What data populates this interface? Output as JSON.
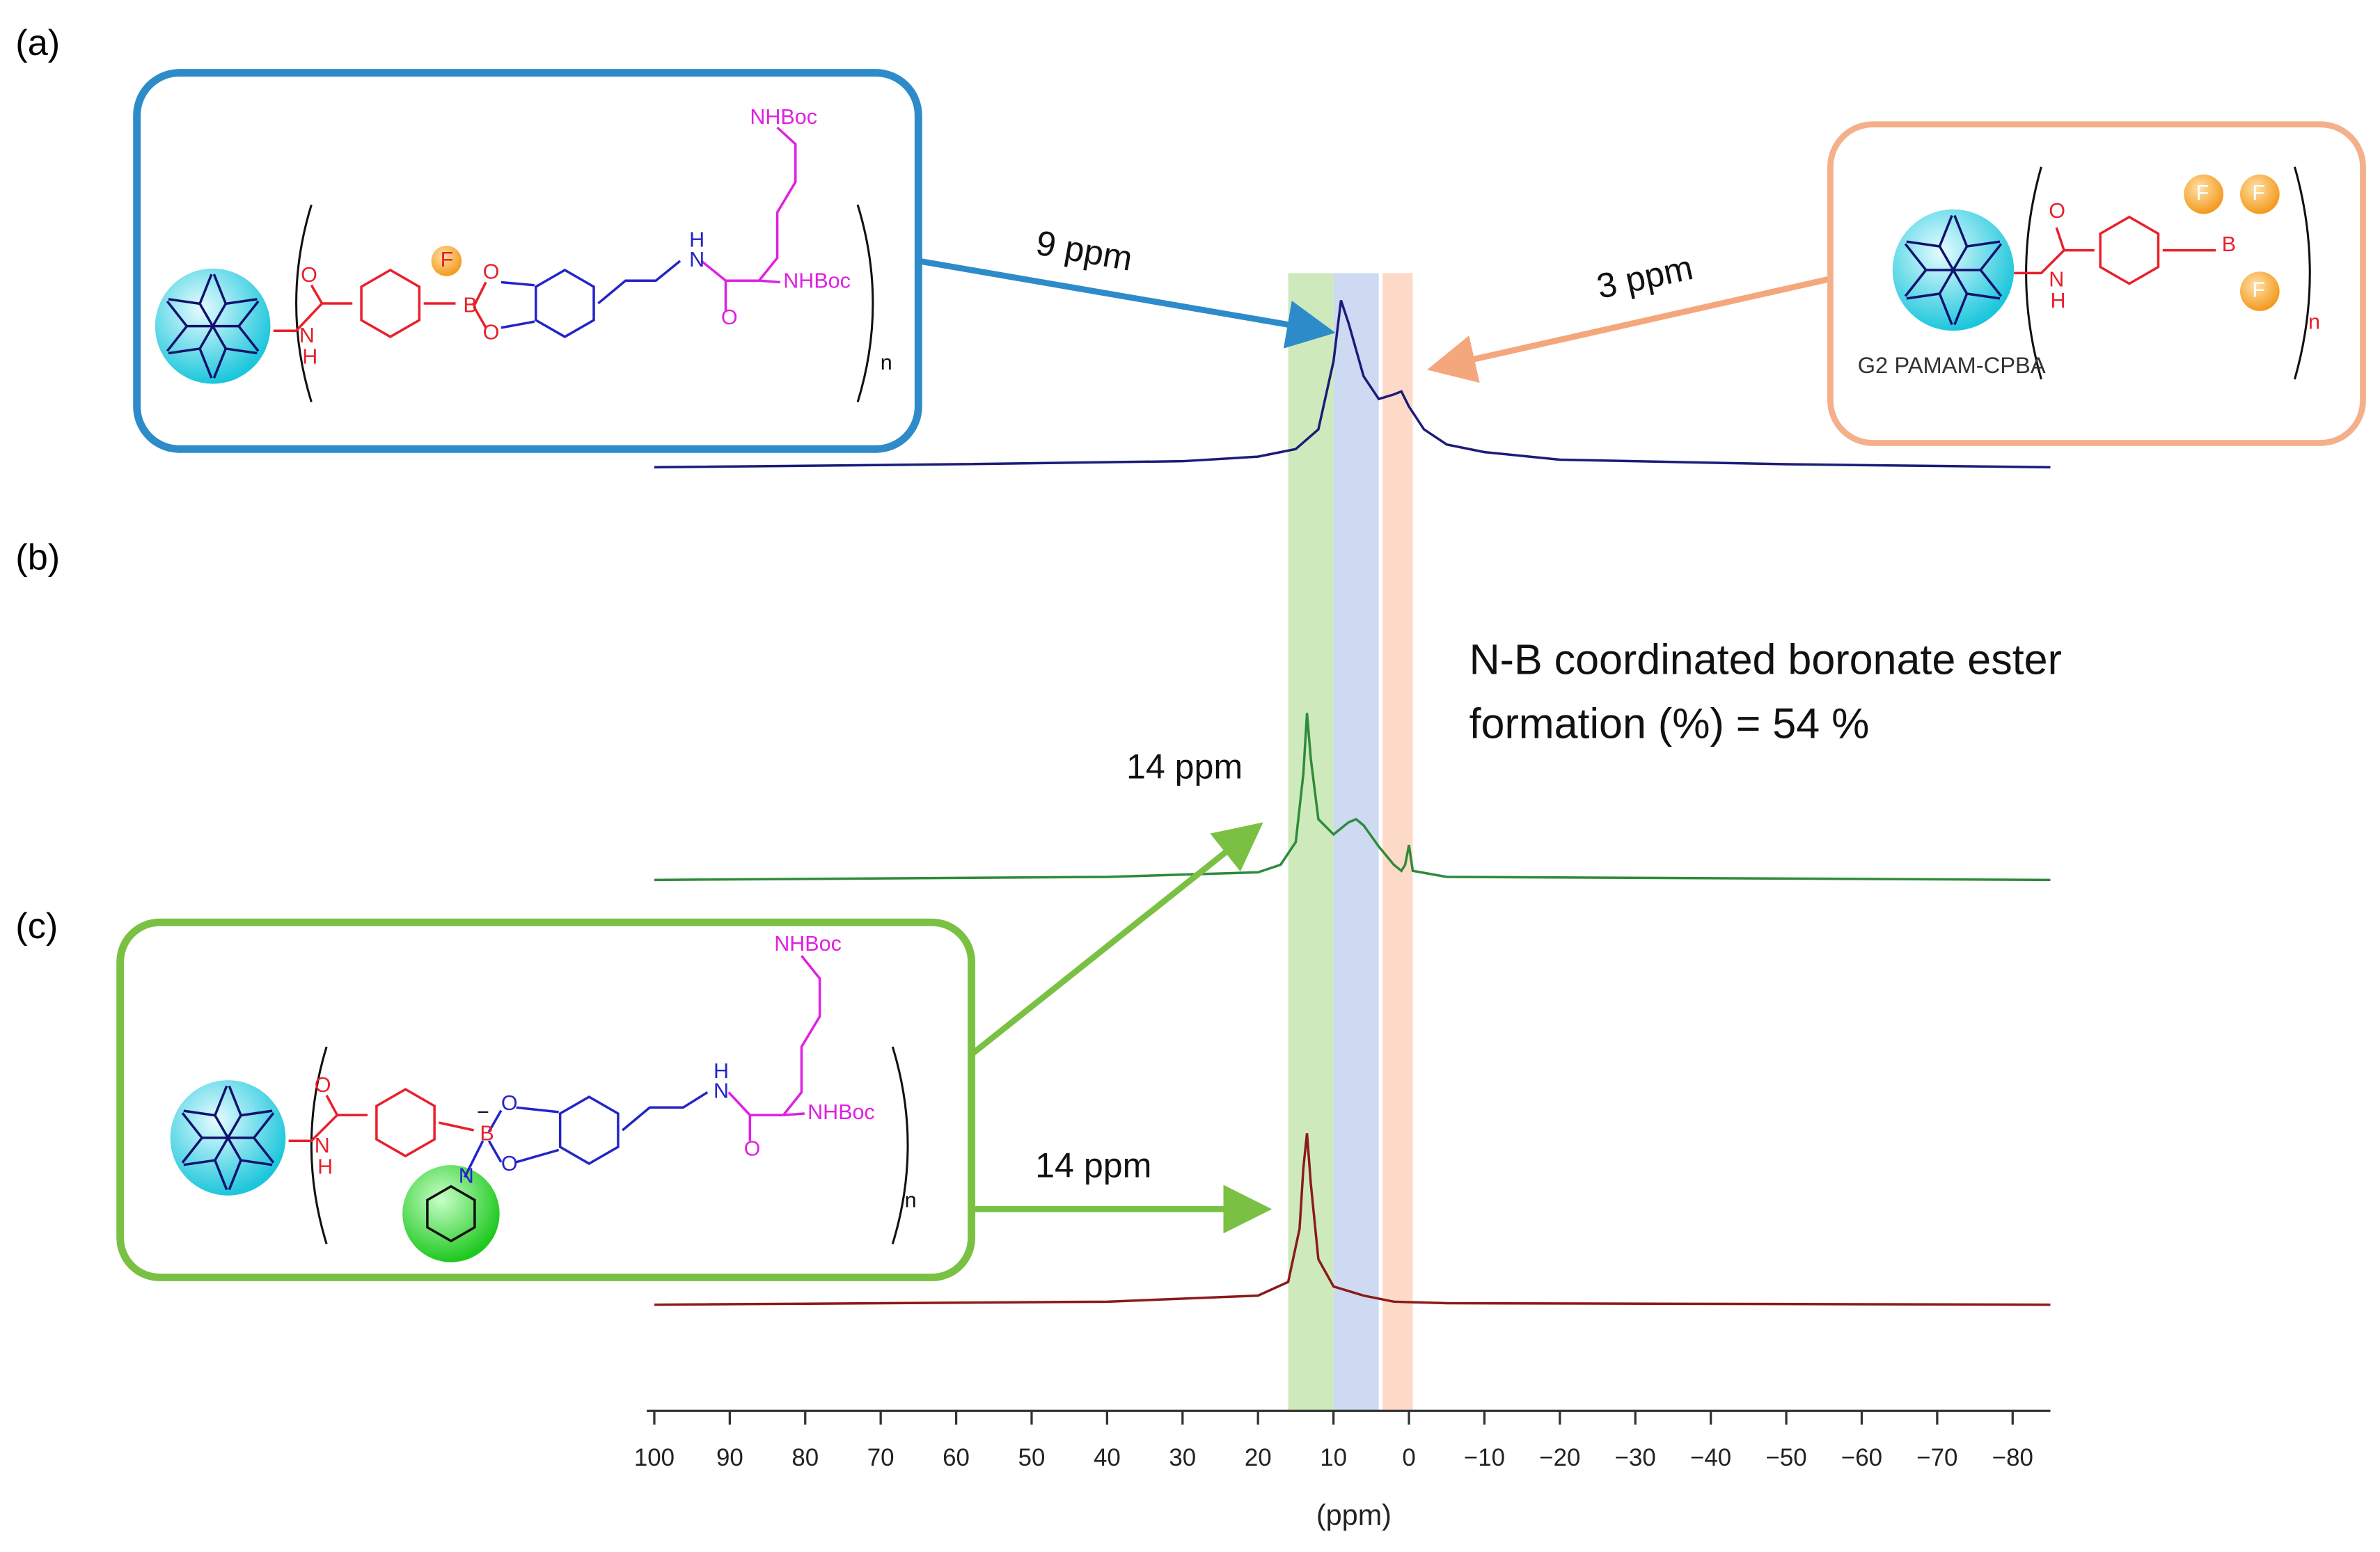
{
  "chart_data": {
    "type": "line",
    "xlabel": "(ppm)",
    "xlim": [
      101,
      -85
    ],
    "xticks": [
      100,
      90,
      80,
      70,
      60,
      50,
      40,
      30,
      20,
      10,
      0,
      {
        "value": -10,
        "label": "−10"
      },
      {
        "value": -20,
        "label": "−20"
      },
      {
        "value": -30,
        "label": "−30"
      },
      {
        "value": -40,
        "label": "−40"
      },
      {
        "value": -50,
        "label": "−50"
      },
      {
        "value": -60,
        "label": "−60"
      },
      {
        "value": -70,
        "label": "−70"
      },
      {
        "value": -80,
        "label": "−80"
      }
    ],
    "bands": [
      {
        "range": [
          16,
          10
        ],
        "color": "#c6e6b0"
      },
      {
        "range": [
          10,
          4
        ],
        "color": "#c5d3ee"
      },
      {
        "range": [
          3.5,
          -0.5
        ],
        "color": "#fbd3bd"
      }
    ],
    "series": [
      {
        "color": "#1c1c78",
        "x": [
          100,
          60,
          30,
          20,
          15,
          12,
          10,
          9,
          8,
          6,
          4,
          2,
          1,
          0,
          -2,
          -5,
          -10,
          -20,
          -50,
          -85
        ],
        "values": [
          0,
          2,
          4,
          7,
          12,
          25,
          70,
          110,
          95,
          60,
          45,
          48,
          50,
          40,
          25,
          15,
          10,
          5,
          2,
          0
        ]
      },
      {
        "color": "#2e8b3a",
        "x": [
          100,
          40,
          20,
          17,
          15,
          14,
          13.5,
          13,
          12,
          10,
          8,
          7,
          6,
          4,
          2,
          1,
          0.5,
          0,
          -0.5,
          -5,
          -85
        ],
        "values": [
          0,
          2,
          5,
          10,
          25,
          70,
          110,
          80,
          40,
          30,
          38,
          40,
          36,
          22,
          10,
          6,
          10,
          23,
          6,
          2,
          0
        ]
      },
      {
        "color": "#8b1a1a",
        "x": [
          100,
          40,
          20,
          16,
          14.5,
          14,
          13.5,
          13,
          12,
          10,
          6,
          2,
          -5,
          -85
        ],
        "values": [
          0,
          2,
          6,
          15,
          50,
          90,
          113,
          80,
          30,
          12,
          6,
          2,
          1,
          0
        ]
      }
    ],
    "panel_labels": [
      "(a)",
      "(b)",
      "(c)"
    ],
    "annotations": [
      "9 ppm",
      "3 ppm",
      "14 ppm",
      "14 ppm"
    ],
    "note": [
      "N-B coordinated boronate ester",
      "formation (%) = 54 %"
    ]
  },
  "structures": {
    "a": [
      "O",
      "N",
      "H",
      "B",
      "F",
      "O",
      "O",
      "N",
      "H",
      "O",
      "NHBoc",
      "NHBoc",
      "n"
    ],
    "orange": [
      "O",
      "N",
      "H",
      "B",
      "F",
      "F",
      "F",
      "n",
      "G2 PAMAM-CPBA"
    ],
    "c": [
      "O",
      "N",
      "H",
      "B",
      "−",
      "N",
      "O",
      "O",
      "N",
      "H",
      "O",
      "NHBoc",
      "NHBoc",
      "n"
    ]
  }
}
